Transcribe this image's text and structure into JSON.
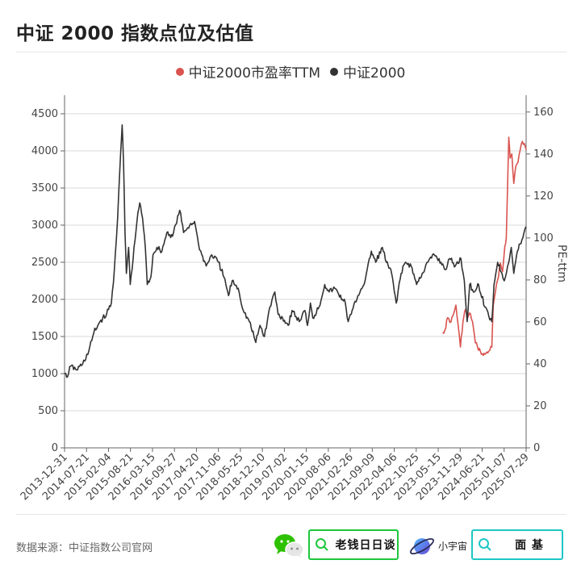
{
  "title": "中证 2000 指数点位及估值",
  "source": "数据来源：中证指数公司官网",
  "branding": {
    "wechat_icon": "wechat-icon",
    "search1_label": "老钱日日谈",
    "planet_icon": "planet-icon",
    "planet_label": "小宇宙",
    "search2_label": "面 基"
  },
  "colors": {
    "pe": "#d9534f",
    "index": "#333333",
    "accent_green": "#1ec63c",
    "accent_teal": "#1ec6c6"
  },
  "chart_data": {
    "type": "line",
    "title": "中证 2000 指数点位及估值",
    "legend_position": "top-center",
    "grid": true,
    "y_left": {
      "ticks": [
        0,
        500,
        1000,
        1500,
        2000,
        2500,
        3000,
        3500,
        4000,
        4500
      ],
      "range": [
        0,
        4750
      ]
    },
    "y_right": {
      "label": "PE-ttm",
      "ticks": [
        0,
        20,
        40,
        60,
        80,
        100,
        120,
        140,
        160
      ],
      "range": [
        0,
        168
      ]
    },
    "x_labels": [
      "2013-12-31",
      "2014-07-21",
      "2015-02-04",
      "2015-08-21",
      "2016-03-15",
      "2016-09-27",
      "2017-04-20",
      "2017-11-06",
      "2018-05-25",
      "2018-12-10",
      "2019-07-02",
      "2020-01-15",
      "2020-08-06",
      "2021-02-26",
      "2021-09-09",
      "2022-04-06",
      "2022-10-25",
      "2023-05-15",
      "2023-11-29",
      "2024-06-21",
      "2025-01-07",
      "2025-07-29"
    ],
    "series": [
      {
        "name": "中证2000市盈率TTM",
        "axis": "right",
        "points": [
          [
            "2023-06-26",
            55
          ],
          [
            "2023-07-15",
            56
          ],
          [
            "2023-08-10",
            62
          ],
          [
            "2023-09-10",
            60
          ],
          [
            "2023-10-05",
            64
          ],
          [
            "2023-10-25",
            68
          ],
          [
            "2023-11-15",
            58
          ],
          [
            "2023-12-05",
            48
          ],
          [
            "2023-12-28",
            60
          ],
          [
            "2024-01-20",
            66
          ],
          [
            "2024-02-10",
            62
          ],
          [
            "2024-03-05",
            64
          ],
          [
            "2024-03-25",
            60
          ],
          [
            "2024-04-20",
            50
          ],
          [
            "2024-05-10",
            48
          ],
          [
            "2024-06-05",
            46
          ],
          [
            "2024-07-01",
            44
          ],
          [
            "2024-07-25",
            45
          ],
          [
            "2024-08-20",
            46
          ],
          [
            "2024-09-18",
            48
          ],
          [
            "2024-10-01",
            68
          ],
          [
            "2024-10-20",
            74
          ],
          [
            "2024-11-10",
            80
          ],
          [
            "2024-12-05",
            88
          ],
          [
            "2024-12-25",
            84
          ],
          [
            "2025-01-15",
            96
          ],
          [
            "2025-01-28",
            100
          ],
          [
            "2025-02-10",
            126
          ],
          [
            "2025-02-20",
            148
          ],
          [
            "2025-03-05",
            138
          ],
          [
            "2025-03-20",
            140
          ],
          [
            "2025-04-07",
            126
          ],
          [
            "2025-04-25",
            134
          ],
          [
            "2025-05-15",
            136
          ],
          [
            "2025-06-05",
            142
          ],
          [
            "2025-06-25",
            146
          ],
          [
            "2025-07-29",
            142
          ]
        ]
      },
      {
        "name": "中证2000",
        "axis": "left",
        "points": [
          [
            "2013-12-31",
            1000
          ],
          [
            "2014-01-20",
            950
          ],
          [
            "2014-02-25",
            1100
          ],
          [
            "2014-04-20",
            1050
          ],
          [
            "2014-06-15",
            1130
          ],
          [
            "2014-08-10",
            1300
          ],
          [
            "2014-09-25",
            1550
          ],
          [
            "2014-11-20",
            1700
          ],
          [
            "2015-01-20",
            1800
          ],
          [
            "2015-03-05",
            1950
          ],
          [
            "2015-04-01",
            2400
          ],
          [
            "2015-05-01",
            3100
          ],
          [
            "2015-05-20",
            3700
          ],
          [
            "2015-06-12",
            4350
          ],
          [
            "2015-06-25",
            3800
          ],
          [
            "2015-07-08",
            2900
          ],
          [
            "2015-07-20",
            2350
          ],
          [
            "2015-08-10",
            2700
          ],
          [
            "2015-08-25",
            2200
          ],
          [
            "2015-09-20",
            2550
          ],
          [
            "2015-10-25",
            3050
          ],
          [
            "2015-11-20",
            3300
          ],
          [
            "2015-12-15",
            3100
          ],
          [
            "2016-01-10",
            2700
          ],
          [
            "2016-01-28",
            2200
          ],
          [
            "2016-03-01",
            2300
          ],
          [
            "2016-03-20",
            2600
          ],
          [
            "2016-04-25",
            2700
          ],
          [
            "2016-06-10",
            2650
          ],
          [
            "2016-07-25",
            2900
          ],
          [
            "2016-09-15",
            2850
          ],
          [
            "2016-11-20",
            3200
          ],
          [
            "2016-12-25",
            2900
          ],
          [
            "2017-02-20",
            3000
          ],
          [
            "2017-04-05",
            3050
          ],
          [
            "2017-05-10",
            2750
          ],
          [
            "2017-06-10",
            2600
          ],
          [
            "2017-07-20",
            2450
          ],
          [
            "2017-09-10",
            2600
          ],
          [
            "2017-11-10",
            2500
          ],
          [
            "2017-12-30",
            2300
          ],
          [
            "2018-02-10",
            2050
          ],
          [
            "2018-03-15",
            2250
          ],
          [
            "2018-05-10",
            2150
          ],
          [
            "2018-06-25",
            1850
          ],
          [
            "2018-08-20",
            1700
          ],
          [
            "2018-10-18",
            1420
          ],
          [
            "2018-11-25",
            1650
          ],
          [
            "2019-01-05",
            1500
          ],
          [
            "2019-02-25",
            1900
          ],
          [
            "2019-04-10",
            2100
          ],
          [
            "2019-05-10",
            1800
          ],
          [
            "2019-06-20",
            1750
          ],
          [
            "2019-08-10",
            1650
          ],
          [
            "2019-09-15",
            1850
          ],
          [
            "2019-11-20",
            1700
          ],
          [
            "2020-01-10",
            1850
          ],
          [
            "2020-02-03",
            1650
          ],
          [
            "2020-03-01",
            1950
          ],
          [
            "2020-03-23",
            1750
          ],
          [
            "2020-05-20",
            1900
          ],
          [
            "2020-07-10",
            2200
          ],
          [
            "2020-08-20",
            2100
          ],
          [
            "2020-10-10",
            2150
          ],
          [
            "2020-12-20",
            2000
          ],
          [
            "2021-01-15",
            1950
          ],
          [
            "2021-02-10",
            1700
          ],
          [
            "2021-03-10",
            1800
          ],
          [
            "2021-05-10",
            2050
          ],
          [
            "2021-07-15",
            2250
          ],
          [
            "2021-09-10",
            2650
          ],
          [
            "2021-10-20",
            2500
          ],
          [
            "2021-12-20",
            2700
          ],
          [
            "2022-01-25",
            2500
          ],
          [
            "2022-03-15",
            2350
          ],
          [
            "2022-04-26",
            1950
          ],
          [
            "2022-06-10",
            2350
          ],
          [
            "2022-07-20",
            2500
          ],
          [
            "2022-09-10",
            2450
          ],
          [
            "2022-10-30",
            2200
          ],
          [
            "2022-12-20",
            2350
          ],
          [
            "2023-02-10",
            2500
          ],
          [
            "2023-04-10",
            2600
          ],
          [
            "2023-06-10",
            2500
          ],
          [
            "2023-07-20",
            2400
          ],
          [
            "2023-08-28",
            2550
          ],
          [
            "2023-10-20",
            2450
          ],
          [
            "2023-12-10",
            2550
          ],
          [
            "2024-01-10",
            2250
          ],
          [
            "2024-02-05",
            1700
          ],
          [
            "2024-02-28",
            2200
          ],
          [
            "2024-04-10",
            2100
          ],
          [
            "2024-05-20",
            2200
          ],
          [
            "2024-07-15",
            1900
          ],
          [
            "2024-09-18",
            1700
          ],
          [
            "2024-10-08",
            2200
          ],
          [
            "2024-11-10",
            2500
          ],
          [
            "2024-12-20",
            2350
          ],
          [
            "2025-01-10",
            2250
          ],
          [
            "2025-02-10",
            2450
          ],
          [
            "2025-03-15",
            2700
          ],
          [
            "2025-04-07",
            2350
          ],
          [
            "2025-05-10",
            2650
          ],
          [
            "2025-06-20",
            2800
          ],
          [
            "2025-07-29",
            2980
          ]
        ]
      }
    ]
  }
}
